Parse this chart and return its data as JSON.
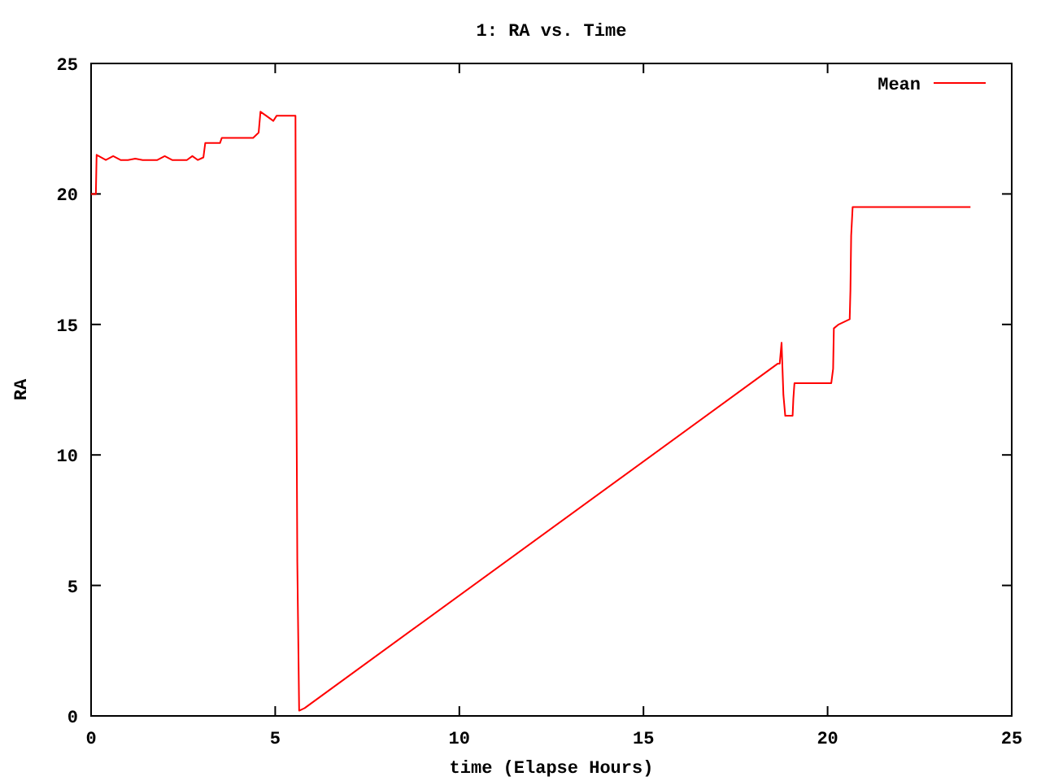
{
  "chart_data": {
    "type": "line",
    "title": "1: RA vs. Time",
    "xlabel": "time (Elapse Hours)",
    "ylabel": "RA",
    "xlim": [
      0,
      25
    ],
    "ylim": [
      0,
      25
    ],
    "xticks": [
      0,
      5,
      10,
      15,
      20,
      25
    ],
    "yticks": [
      0,
      5,
      10,
      15,
      20,
      25
    ],
    "grid": false,
    "legend": "top right",
    "series": [
      {
        "name": "Mean",
        "color": "#ff0000",
        "x": [
          0,
          0.13,
          0.15,
          0.4,
          0.6,
          0.8,
          1.0,
          1.2,
          1.4,
          1.8,
          2.0,
          2.2,
          2.6,
          2.75,
          2.9,
          3.05,
          3.1,
          3.5,
          3.55,
          4.4,
          4.55,
          4.6,
          4.75,
          4.95,
          5.04,
          5.55,
          5.56,
          5.6,
          5.65,
          5.8,
          18.65,
          18.7,
          18.75,
          18.8,
          18.85,
          19.05,
          19.07,
          19.1,
          20.1,
          20.15,
          20.17,
          20.3,
          20.6,
          20.62,
          20.64,
          20.68,
          23.88
        ],
        "values": [
          20.0,
          20.0,
          21.5,
          21.3,
          21.45,
          21.3,
          21.3,
          21.35,
          21.3,
          21.3,
          21.45,
          21.3,
          21.3,
          21.45,
          21.3,
          21.4,
          21.95,
          21.95,
          22.15,
          22.15,
          22.35,
          23.15,
          23.0,
          22.8,
          23.0,
          23.0,
          17.3,
          5.9,
          0.2,
          0.3,
          13.5,
          13.5,
          14.3,
          12.3,
          11.5,
          11.5,
          12.15,
          12.75,
          12.75,
          13.3,
          14.85,
          15.0,
          15.2,
          16.3,
          18.4,
          19.5,
          19.5
        ]
      }
    ]
  }
}
